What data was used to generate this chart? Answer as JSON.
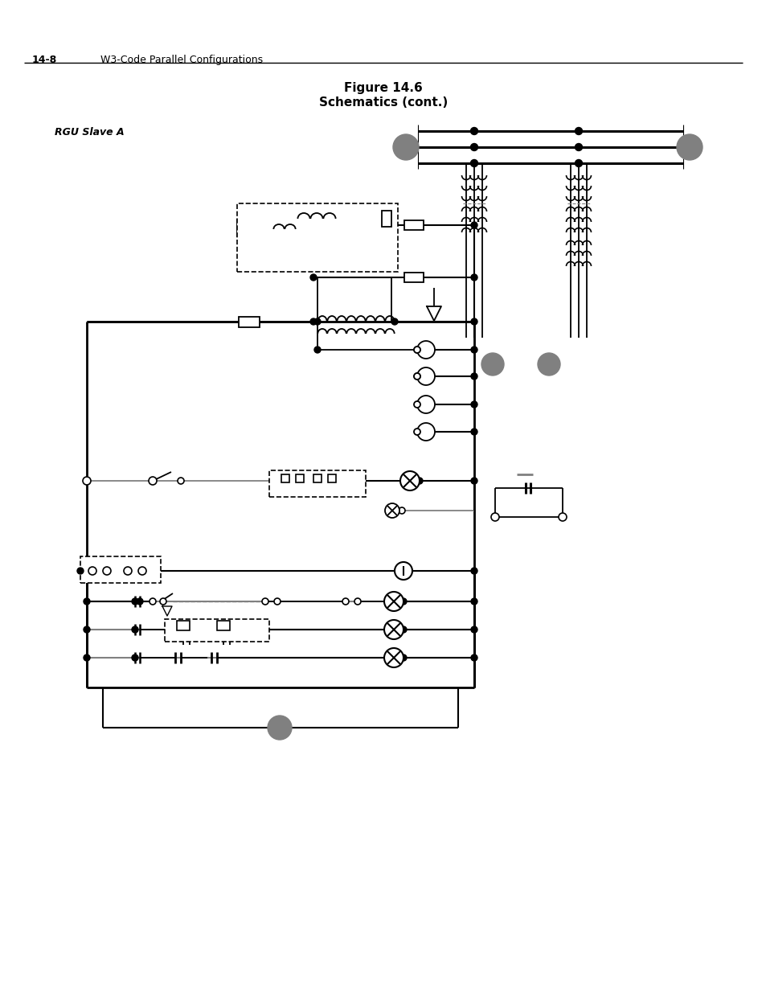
{
  "title1": "Figure 14.6",
  "title2": "Schematics (cont.)",
  "label_rgu": "RGU Slave A",
  "page_label": "14-8",
  "page_subtitle": "W3-Code Parallel Configurations",
  "bg_color": "#ffffff",
  "line_color": "#000000",
  "gray_color": "#808080"
}
